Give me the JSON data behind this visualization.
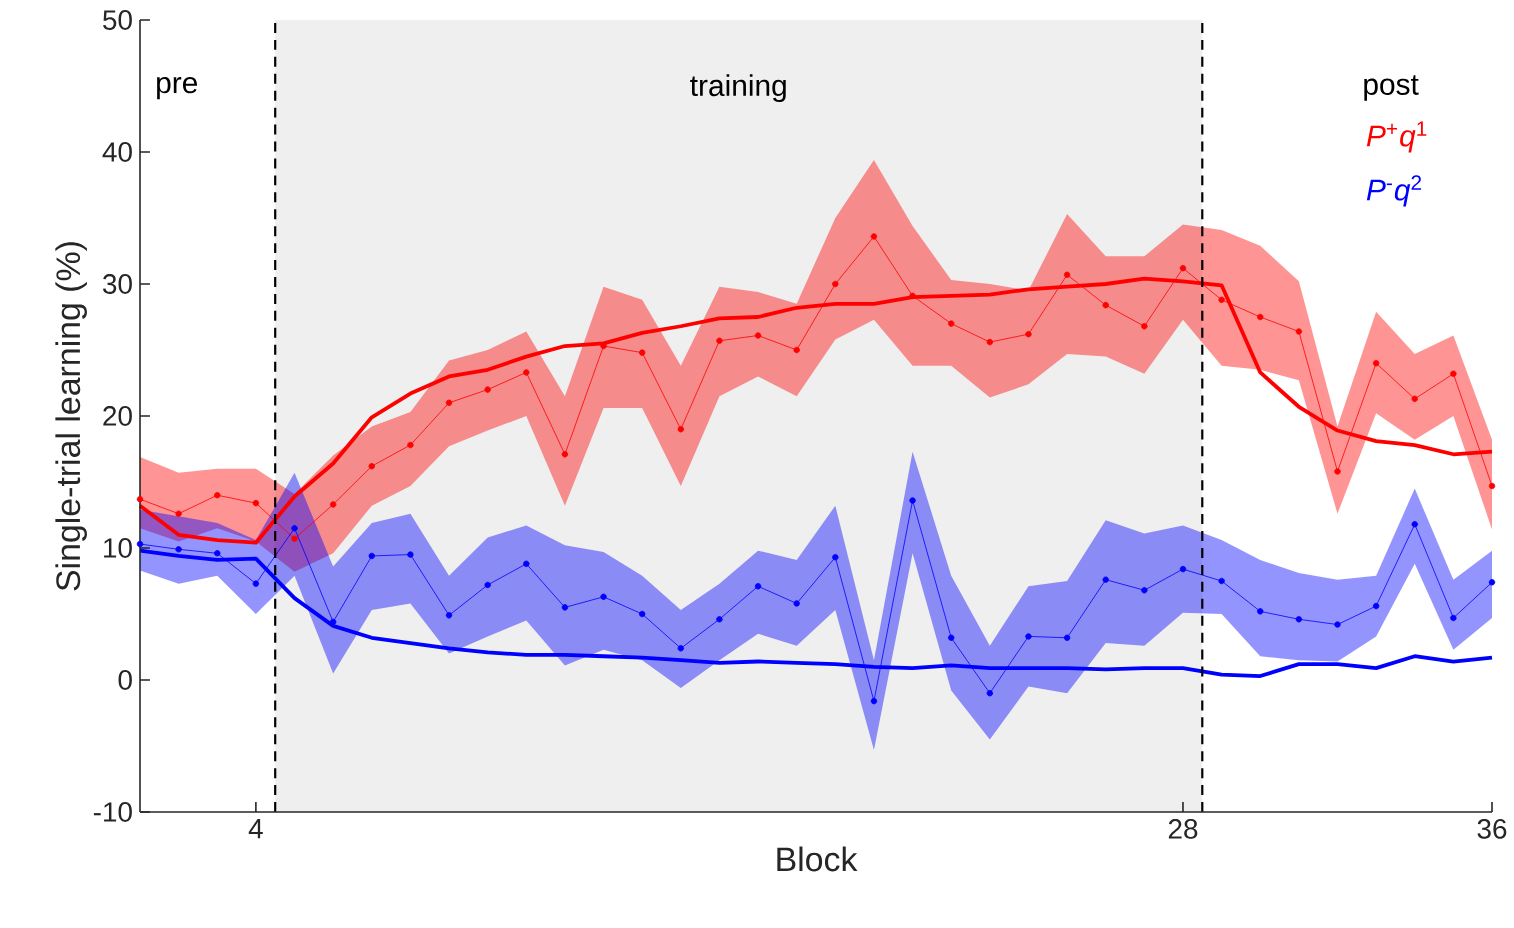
{
  "chart_data": {
    "type": "line",
    "xlabel": "Block",
    "ylabel": "Single-trial learning (%)",
    "xlim": [
      1,
      36
    ],
    "ylim": [
      -10,
      50
    ],
    "xticks": [
      4,
      28,
      36
    ],
    "yticks": [
      -10,
      0,
      10,
      20,
      30,
      40,
      50
    ],
    "x": [
      1,
      2,
      3,
      4,
      5,
      6,
      7,
      8,
      9,
      10,
      11,
      12,
      13,
      14,
      15,
      16,
      17,
      18,
      19,
      20,
      21,
      22,
      23,
      24,
      25,
      26,
      27,
      28,
      29,
      30,
      31,
      32,
      33,
      34,
      35,
      36
    ],
    "legend": "top right",
    "series": [
      {
        "name": "*P*$^{+}$*q*$^{1}$",
        "color": "#ff0000",
        "marker": "circle",
        "values": [
          13.7,
          12.6,
          14.0,
          13.4,
          10.7,
          13.3,
          16.2,
          17.8,
          21.0,
          22.0,
          23.3,
          17.1,
          25.3,
          24.8,
          19.0,
          25.7,
          26.1,
          25.0,
          30.0,
          33.6,
          29.1,
          27.0,
          25.6,
          26.2,
          30.7,
          28.4,
          26.8,
          31.2,
          28.8,
          27.5,
          26.4,
          15.8,
          24.0,
          21.3,
          23.2,
          14.7
        ],
        "upper": [
          16.9,
          15.7,
          16.0,
          16.0,
          14.1,
          17.0,
          19.2,
          20.3,
          24.2,
          25.0,
          26.4,
          21.5,
          29.8,
          28.8,
          23.8,
          29.8,
          29.4,
          28.5,
          35.0,
          39.4,
          34.4,
          30.3,
          30.0,
          29.5,
          35.3,
          32.1,
          32.1,
          34.5,
          34.1,
          32.9,
          30.2,
          19.2,
          27.9,
          24.7,
          26.1,
          18.2
        ],
        "lower": [
          11.5,
          10.5,
          11.5,
          10.5,
          8.2,
          9.6,
          13.2,
          14.7,
          17.7,
          18.9,
          20.0,
          13.2,
          20.6,
          20.6,
          14.7,
          21.5,
          23.0,
          21.5,
          25.8,
          27.3,
          23.8,
          23.8,
          21.4,
          22.4,
          24.7,
          24.5,
          23.2,
          27.3,
          23.8,
          23.5,
          22.7,
          12.6,
          20.2,
          18.2,
          20.0,
          11.4
        ]
      },
      {
        "color": "#ff0000",
        "marker": "none",
        "values": [
          13.2,
          11.0,
          10.6,
          10.4,
          13.9,
          16.4,
          19.9,
          21.7,
          23.0,
          23.5,
          24.5,
          25.3,
          25.5,
          26.3,
          26.8,
          27.4,
          27.5,
          28.2,
          28.5,
          28.5,
          29.0,
          29.1,
          29.2,
          29.6,
          29.8,
          30.0,
          30.4,
          30.2,
          29.9,
          23.3,
          20.7,
          18.9,
          18.1,
          17.8,
          17.1,
          17.3
        ]
      },
      {
        "name": "*P*$^{-}$*q*$^{2}$",
        "color": "#0000ff",
        "marker": "circle",
        "values": [
          10.3,
          9.9,
          9.6,
          7.3,
          11.5,
          4.4,
          9.4,
          9.5,
          4.9,
          7.2,
          8.8,
          5.5,
          6.3,
          5.0,
          2.4,
          4.6,
          7.1,
          5.8,
          9.3,
          -1.6,
          13.6,
          3.2,
          -1.0,
          3.3,
          3.2,
          7.6,
          6.8,
          8.4,
          7.5,
          5.2,
          4.6,
          4.2,
          5.6,
          11.8,
          4.7,
          7.4
        ],
        "upper": [
          12.9,
          12.4,
          11.9,
          10.6,
          15.7,
          8.6,
          11.9,
          12.6,
          7.9,
          10.8,
          11.7,
          10.2,
          9.7,
          7.9,
          5.3,
          7.3,
          9.8,
          9.1,
          13.2,
          1.5,
          17.3,
          7.9,
          2.6,
          7.1,
          7.5,
          12.1,
          11.1,
          11.7,
          10.6,
          9.1,
          8.1,
          7.6,
          7.9,
          14.5,
          7.6,
          9.8
        ],
        "lower": [
          8.3,
          7.3,
          7.9,
          5.0,
          7.9,
          0.5,
          5.3,
          5.8,
          2.0,
          3.3,
          4.5,
          1.1,
          2.3,
          1.5,
          -0.6,
          1.5,
          3.5,
          2.6,
          5.3,
          -5.3,
          9.6,
          -0.8,
          -4.5,
          -0.5,
          -1.0,
          2.8,
          2.6,
          5.1,
          5.0,
          1.8,
          1.5,
          1.4,
          3.3,
          8.8,
          2.3,
          4.7
        ]
      },
      {
        "color": "#0000ff",
        "marker": "none",
        "values": [
          9.8,
          9.4,
          9.1,
          9.2,
          6.2,
          4.1,
          3.2,
          2.8,
          2.4,
          2.1,
          1.9,
          1.9,
          1.8,
          1.7,
          1.5,
          1.3,
          1.4,
          1.3,
          1.2,
          1.0,
          0.9,
          1.1,
          0.9,
          0.9,
          0.9,
          0.8,
          0.9,
          0.9,
          0.4,
          0.3,
          1.2,
          1.2,
          0.9,
          1.8,
          1.4,
          1.7
        ]
      }
    ],
    "bands": [
      {
        "axis": "x",
        "from": 4.5,
        "to": 28.5,
        "label": "training",
        "color": "#efefef"
      }
    ],
    "ref_lines": [
      {
        "axis": "x",
        "value": 4.5,
        "line_style": "dashed"
      },
      {
        "axis": "x",
        "value": 28.5,
        "line_style": "dashed"
      }
    ],
    "annotations": [
      "pre",
      "post"
    ]
  }
}
